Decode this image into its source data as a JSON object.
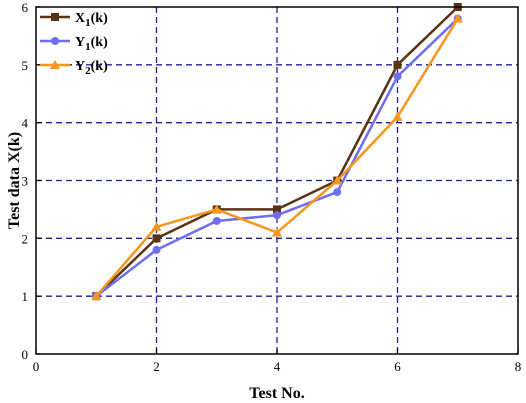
{
  "chart_data": {
    "type": "line",
    "title": "",
    "xlabel": "Test No.",
    "ylabel": "Test data X(k)",
    "xlim": [
      0,
      8
    ],
    "ylim": [
      0,
      6
    ],
    "xticks": [
      0,
      2,
      4,
      6,
      8
    ],
    "yticks": [
      0,
      1,
      2,
      3,
      4,
      5,
      6
    ],
    "grid": true,
    "grid_style": "dashed",
    "grid_color": "#1f1f9a",
    "legend_position": "top-left",
    "series": [
      {
        "name": "X1(k)",
        "name_base": "X",
        "name_sub": "1",
        "name_suffix": "(k)",
        "color": "#5a3214",
        "marker": "square",
        "x": [
          1,
          2,
          3,
          4,
          5,
          6,
          7
        ],
        "y": [
          1.0,
          2.0,
          2.5,
          2.5,
          3.0,
          5.0,
          6.0
        ]
      },
      {
        "name": "Y1(k)",
        "name_base": "Y",
        "name_sub": "1",
        "name_suffix": "(k)",
        "color": "#6e6ef0",
        "marker": "circle",
        "x": [
          1,
          2,
          3,
          4,
          5,
          6,
          7
        ],
        "y": [
          1.0,
          1.8,
          2.3,
          2.4,
          2.8,
          4.8,
          5.8
        ]
      },
      {
        "name": "Y2(k)",
        "name_base": "Y",
        "name_sub": "2",
        "name_suffix": "(k)",
        "color": "#f5961e",
        "marker": "triangle",
        "x": [
          1,
          2,
          3,
          4,
          5,
          6,
          7
        ],
        "y": [
          1.0,
          2.2,
          2.5,
          2.1,
          3.0,
          4.1,
          5.8
        ]
      }
    ]
  }
}
